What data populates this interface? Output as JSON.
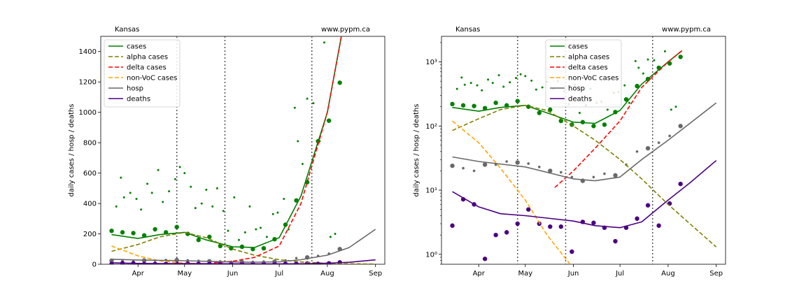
{
  "chart_data": [
    {
      "type": "line",
      "scale": "linear",
      "ylabel": "daily cases / hosp / deaths",
      "region_label": "Kansas",
      "source_label": "www.pypm.ca",
      "ylim": [
        0,
        1500
      ],
      "yticks": [
        0,
        200,
        400,
        600,
        800,
        1000,
        1200,
        1400
      ],
      "ytick_labels": [
        "0",
        "200",
        "400",
        "600",
        "800",
        "1000",
        "1200",
        "1400"
      ],
      "xlim": [
        "2021-03-08",
        "2021-09-07"
      ],
      "xticks": [
        "2021-04-01",
        "2021-05-01",
        "2021-06-01",
        "2021-07-01",
        "2021-08-01",
        "2021-09-01"
      ],
      "xtick_labels": [
        "Apr",
        "May",
        "Jun",
        "Jul",
        "Aug",
        "Sep"
      ],
      "vlines": [
        "2021-04-26",
        "2021-05-27",
        "2021-07-22"
      ],
      "legend": [
        "cases",
        "alpha cases",
        "delta cases",
        "non-VoC cases",
        "hosp",
        "deaths"
      ],
      "series": [
        {
          "name": "cases",
          "style": "solid",
          "color": "#008000",
          "x": [
            "2021-03-15",
            "2021-04-01",
            "2021-04-15",
            "2021-05-01",
            "2021-05-15",
            "2021-06-01",
            "2021-06-15",
            "2021-07-01",
            "2021-07-15",
            "2021-08-01",
            "2021-08-10"
          ],
          "values": [
            195,
            170,
            195,
            210,
            160,
            115,
            110,
            175,
            450,
            1000,
            1500
          ]
        },
        {
          "name": "alpha cases",
          "style": "dashed",
          "color": "#808000",
          "x": [
            "2021-03-15",
            "2021-04-01",
            "2021-04-15",
            "2021-05-01",
            "2021-05-15",
            "2021-06-01",
            "2021-06-15",
            "2021-07-01",
            "2021-07-15",
            "2021-08-01",
            "2021-08-15",
            "2021-09-01"
          ],
          "values": [
            85,
            130,
            180,
            210,
            175,
            100,
            60,
            30,
            15,
            6,
            3,
            1.3
          ]
        },
        {
          "name": "delta cases",
          "style": "dashed",
          "color": "#ff0000",
          "x": [
            "2021-05-20",
            "2021-06-01",
            "2021-06-15",
            "2021-07-01",
            "2021-07-15",
            "2021-08-01",
            "2021-08-10"
          ],
          "values": [
            11,
            20,
            45,
            120,
            400,
            1000,
            1500
          ]
        },
        {
          "name": "non-VoC cases",
          "style": "dashed",
          "color": "#ffa500",
          "x": [
            "2021-03-15",
            "2021-04-01",
            "2021-04-15",
            "2021-05-01",
            "2021-05-15",
            "2021-06-01"
          ],
          "values": [
            120,
            55,
            22,
            7,
            2,
            0.6
          ]
        },
        {
          "name": "hosp",
          "style": "solid",
          "color": "#696969",
          "x": [
            "2021-03-15",
            "2021-04-01",
            "2021-05-01",
            "2021-06-01",
            "2021-06-15",
            "2021-07-01",
            "2021-07-15",
            "2021-08-01",
            "2021-08-15",
            "2021-09-01"
          ],
          "values": [
            33,
            28,
            23,
            15,
            14,
            16,
            30,
            60,
            110,
            230
          ]
        },
        {
          "name": "deaths",
          "style": "solid",
          "color": "#4b0082",
          "x": [
            "2021-03-15",
            "2021-04-01",
            "2021-04-15",
            "2021-05-01",
            "2021-06-01",
            "2021-06-15",
            "2021-07-01",
            "2021-07-15",
            "2021-08-01",
            "2021-08-15",
            "2021-09-01"
          ],
          "values": [
            9.5,
            5.5,
            4.3,
            4,
            3.3,
            2.8,
            2.6,
            3.2,
            7,
            13,
            29
          ]
        }
      ],
      "scatter": [
        {
          "name": "cases weekly",
          "color": "#008000",
          "size": "large",
          "x": [
            "2021-03-15",
            "2021-03-22",
            "2021-03-29",
            "2021-04-05",
            "2021-04-12",
            "2021-04-19",
            "2021-04-26",
            "2021-05-03",
            "2021-05-10",
            "2021-05-17",
            "2021-05-24",
            "2021-05-31",
            "2021-06-07",
            "2021-06-14",
            "2021-06-21",
            "2021-06-28",
            "2021-07-05",
            "2021-07-12",
            "2021-07-19",
            "2021-07-26",
            "2021-08-02",
            "2021-08-09"
          ],
          "values": [
            220,
            210,
            205,
            190,
            230,
            210,
            245,
            200,
            160,
            180,
            120,
            105,
            115,
            100,
            105,
            165,
            260,
            420,
            540,
            810,
            945,
            1195
          ]
        },
        {
          "name": "cases daily",
          "color": "#008000",
          "size": "small",
          "x": [
            "2021-03-18",
            "2021-03-21",
            "2021-03-23",
            "2021-03-27",
            "2021-03-31",
            "2021-04-03",
            "2021-04-07",
            "2021-04-10",
            "2021-04-14",
            "2021-04-17",
            "2021-04-21",
            "2021-04-25",
            "2021-04-28",
            "2021-05-01",
            "2021-05-05",
            "2021-05-08",
            "2021-05-12",
            "2021-05-15",
            "2021-05-19",
            "2021-05-22",
            "2021-05-26",
            "2021-05-29",
            "2021-06-02",
            "2021-06-05",
            "2021-06-09",
            "2021-06-12",
            "2021-06-16",
            "2021-06-19",
            "2021-06-23",
            "2021-06-27",
            "2021-06-30",
            "2021-07-04",
            "2021-07-07",
            "2021-07-11",
            "2021-07-13",
            "2021-07-16",
            "2021-07-19",
            "2021-07-23",
            "2021-07-27",
            "2021-07-30",
            "2021-08-03",
            "2021-08-06"
          ],
          "values": [
            380,
            570,
            440,
            470,
            430,
            360,
            530,
            470,
            620,
            410,
            480,
            560,
            640,
            600,
            510,
            370,
            400,
            490,
            380,
            500,
            350,
            220,
            440,
            160,
            210,
            380,
            230,
            240,
            180,
            330,
            340,
            430,
            230,
            1030,
            810,
            660,
            1090,
            1060,
            810,
            1460,
            180,
            200
          ]
        },
        {
          "name": "hosp points",
          "color": "#696969",
          "size": "mixed",
          "x": [
            "2021-03-15",
            "2021-03-22",
            "2021-03-29",
            "2021-04-05",
            "2021-04-12",
            "2021-04-19",
            "2021-04-26",
            "2021-05-03",
            "2021-05-10",
            "2021-05-17",
            "2021-05-24",
            "2021-05-31",
            "2021-06-07",
            "2021-06-14",
            "2021-06-21",
            "2021-06-28",
            "2021-07-05",
            "2021-07-12",
            "2021-07-19",
            "2021-07-26",
            "2021-08-02",
            "2021-08-09"
          ],
          "values": [
            24,
            22,
            20,
            25,
            25,
            28,
            27,
            26,
            23,
            20,
            19,
            16,
            14,
            16,
            18,
            17,
            25,
            40,
            45,
            55,
            70,
            100
          ]
        },
        {
          "name": "deaths points",
          "color": "#4b0082",
          "size": "large",
          "x": [
            "2021-03-15",
            "2021-03-22",
            "2021-03-29",
            "2021-04-05",
            "2021-04-12",
            "2021-04-19",
            "2021-04-26",
            "2021-05-03",
            "2021-05-10",
            "2021-05-17",
            "2021-05-24",
            "2021-05-31",
            "2021-06-07",
            "2021-06-14",
            "2021-06-21",
            "2021-06-28",
            "2021-07-05",
            "2021-07-12",
            "2021-07-19",
            "2021-07-26",
            "2021-08-02",
            "2021-08-09"
          ],
          "values": [
            2.8,
            7.2,
            6,
            0.85,
            2,
            2.2,
            3,
            5,
            3,
            2.7,
            2.7,
            1.1,
            3.2,
            3.1,
            2.6,
            1.6,
            2.6,
            3.6,
            5.8,
            2.8,
            6.2,
            12.5
          ]
        }
      ]
    },
    {
      "type": "line",
      "scale": "log",
      "ylabel": "daily cases / hosp / deaths",
      "region_label": "Kansas",
      "source_label": "www.pypm.ca",
      "ylim": [
        0.7,
        2500
      ],
      "yticks": [
        1,
        10,
        100,
        1000
      ],
      "ytick_labels": [
        "10⁰",
        "10¹",
        "10²",
        "10³"
      ],
      "xlim": [
        "2021-03-08",
        "2021-09-07"
      ],
      "xticks": [
        "2021-04-01",
        "2021-05-01",
        "2021-06-01",
        "2021-07-01",
        "2021-08-01",
        "2021-09-01"
      ],
      "xtick_labels": [
        "Apr",
        "May",
        "Jun",
        "Jul",
        "Aug",
        "Sep"
      ],
      "vlines": [
        "2021-04-26",
        "2021-05-27",
        "2021-07-22"
      ],
      "legend": [
        "cases",
        "alpha cases",
        "delta cases",
        "non-VoC cases",
        "hosp",
        "deaths"
      ]
    }
  ]
}
